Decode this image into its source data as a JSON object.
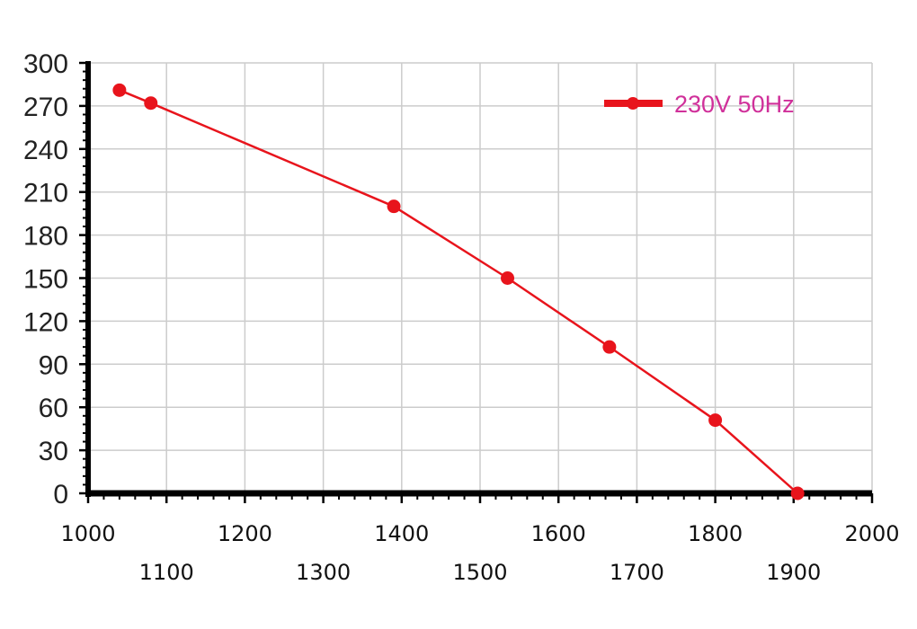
{
  "chart_data": {
    "type": "line",
    "title": "",
    "xlabel": "",
    "ylabel": "",
    "xlim": [
      1000,
      2000
    ],
    "ylim": [
      0,
      300
    ],
    "x_ticks": [
      "1000",
      "1100",
      "1200",
      "1300",
      "1400",
      "1500",
      "1600",
      "1700",
      "1800",
      "1900",
      "2000"
    ],
    "y_ticks": [
      "0",
      "30",
      "60",
      "90",
      "120",
      "150",
      "180",
      "210",
      "240",
      "270",
      "300"
    ],
    "grid": true,
    "legend_position": "top-right",
    "series": [
      {
        "name": "230V 50Hz",
        "color": "#e8141c",
        "label_color": "#d0309a",
        "points": [
          {
            "x": 1040,
            "y": 281
          },
          {
            "x": 1080,
            "y": 272
          },
          {
            "x": 1390,
            "y": 200
          },
          {
            "x": 1535,
            "y": 150
          },
          {
            "x": 1665,
            "y": 102
          },
          {
            "x": 1800,
            "y": 51
          },
          {
            "x": 1905,
            "y": 0
          }
        ]
      }
    ]
  }
}
